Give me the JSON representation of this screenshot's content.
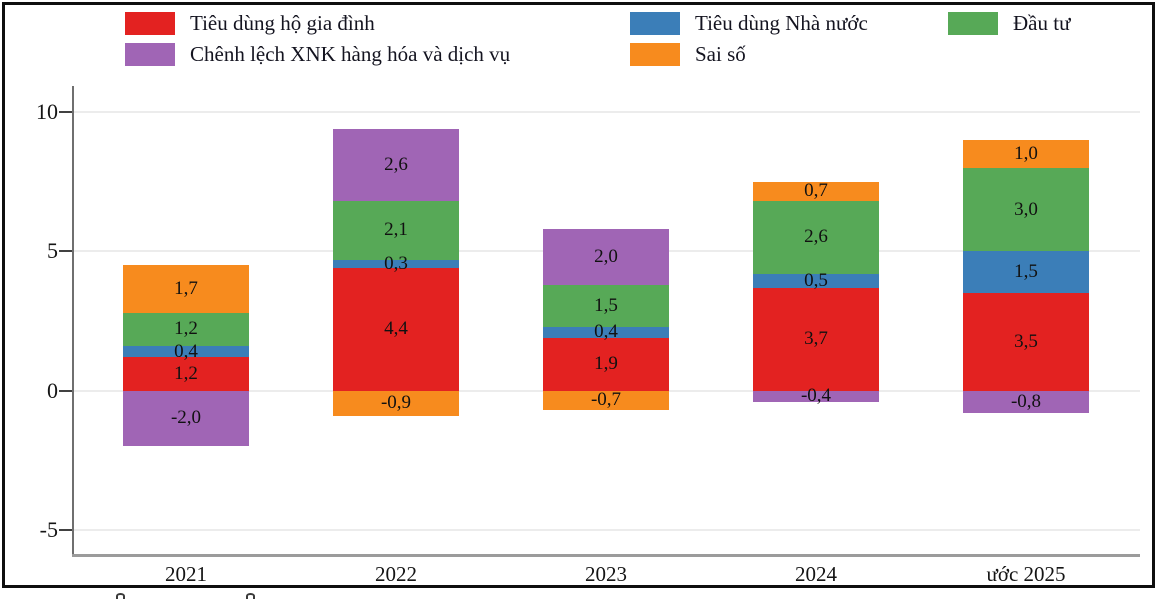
{
  "chart_data": {
    "type": "bar",
    "stacked": true,
    "title": "",
    "categories": [
      "2021",
      "2022",
      "2023",
      "2024",
      "ước 2025"
    ],
    "series": [
      {
        "name": "Tiêu dùng hộ gia đình",
        "color": "#e32221",
        "values": [
          1.2,
          4.4,
          1.9,
          3.7,
          3.5
        ]
      },
      {
        "name": "Tiêu dùng Nhà nước",
        "color": "#3b7eb8",
        "values": [
          0.4,
          0.3,
          0.4,
          0.5,
          1.5
        ]
      },
      {
        "name": "Đầu tư",
        "color": "#57a957",
        "values": [
          1.2,
          2.1,
          1.5,
          2.6,
          3.0
        ]
      },
      {
        "name": "Chênh lệch XNK hàng hóa và dịch vụ",
        "color": "#a065b5",
        "values": [
          -2.0,
          2.6,
          2.0,
          -0.4,
          -0.8
        ]
      },
      {
        "name": "Sai số",
        "color": "#f78b1e",
        "values": [
          1.7,
          -0.9,
          -0.7,
          0.7,
          1.0
        ]
      }
    ],
    "bar_totals_positive": [
      4.5,
      9.4,
      5.8,
      7.5,
      9.0
    ],
    "y_ticks": [
      10,
      5,
      0,
      -5
    ],
    "ylim": [
      -5.9,
      10.9
    ],
    "xlabel": "",
    "ylabel": "",
    "grid": true,
    "legend_position": "top",
    "decimal_separator": ","
  }
}
